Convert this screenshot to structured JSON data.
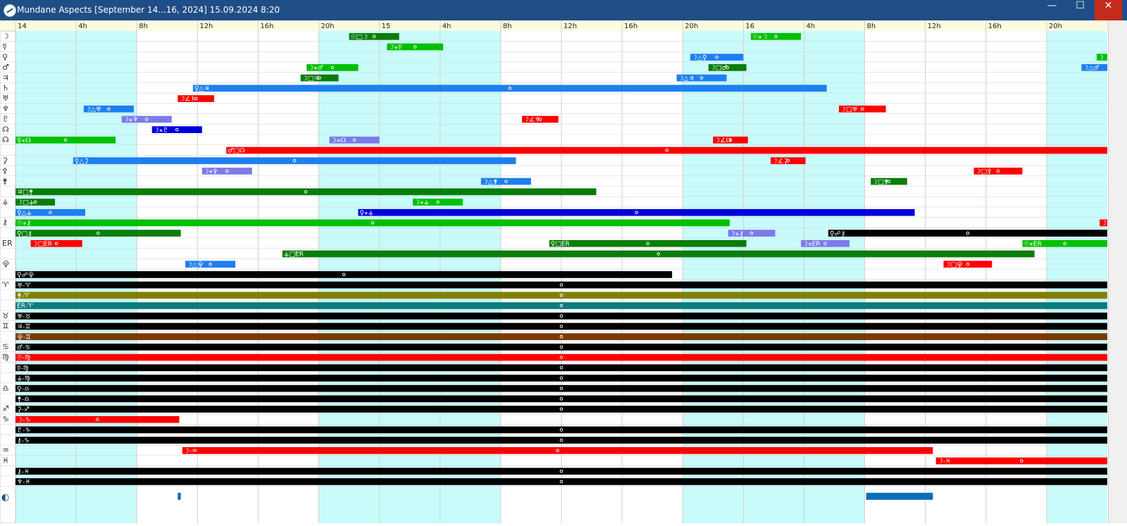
{
  "window": {
    "title": "Mundane Aspects [September 14...16, 2024]  15.09.2024  8:20",
    "minimize_glyph": "—",
    "maximize_glyph": "☐",
    "close_glyph": "✕"
  },
  "colors": {
    "night": "#c9fbfb",
    "day": "#ffffff",
    "header": "#fbfbe0",
    "grid": "#cfcfcf"
  },
  "timeline": {
    "labels": [
      "14",
      "4h",
      "8h",
      "12h",
      "16h",
      "20h",
      "15",
      "4h",
      "8h",
      "12h",
      "16h",
      "20h",
      "16",
      "4h",
      "8h",
      "12h",
      "16h",
      "20h"
    ],
    "night_periods": [
      [
        0,
        8
      ],
      [
        20,
        32
      ],
      [
        44,
        56
      ],
      [
        68,
        72
      ]
    ]
  },
  "rows": [
    {
      "glyph": "☽",
      "bars": [
        {
          "s": 22,
          "e": 25.3,
          "c": "#0a7d0a",
          "t": "☉□☽"
        },
        {
          "s": 48.5,
          "e": 51.8,
          "c": "#00c000",
          "t": "☉⚹☽"
        }
      ]
    },
    {
      "glyph": "☿",
      "bars": [
        {
          "s": 24.5,
          "e": 28.2,
          "c": "#00c000",
          "t": "☽⚹☿"
        }
      ]
    },
    {
      "glyph": "♀",
      "bars": [
        {
          "s": 44.5,
          "e": 48,
          "c": "#1e7ff0",
          "t": "☽△♀"
        },
        {
          "s": 71.3,
          "e": 72,
          "c": "#00c000",
          "t": "☽"
        }
      ]
    },
    {
      "glyph": "♂",
      "bars": [
        {
          "s": 19.2,
          "e": 22.6,
          "c": "#00c000",
          "t": "☽⚹♂"
        },
        {
          "s": 45.7,
          "e": 48.2,
          "c": "#0a7d0a",
          "t": "☽□♂"
        },
        {
          "s": 70.3,
          "e": 72,
          "c": "#1e7ff0",
          "t": "☽△♂"
        }
      ]
    },
    {
      "glyph": "♃",
      "bars": [
        {
          "s": 18.8,
          "e": 21.3,
          "c": "#0a7d0a",
          "t": "☽□♃"
        },
        {
          "s": 43.6,
          "e": 46.9,
          "c": "#1e7ff0",
          "t": "☽△♃"
        }
      ]
    },
    {
      "glyph": "♄",
      "bars": [
        {
          "s": 11.7,
          "e": 53.5,
          "c": "#1e7ff0",
          "t": "♀△♃"
        }
      ]
    },
    {
      "glyph": "♅",
      "bars": [
        {
          "s": 10.7,
          "e": 13.1,
          "c": "#ff0000",
          "t": "☽∠♄"
        }
      ]
    },
    {
      "glyph": "♆",
      "bars": [
        {
          "s": 4.5,
          "e": 7.8,
          "c": "#1e7ff0",
          "t": "☽△♅"
        },
        {
          "s": 54.3,
          "e": 57.4,
          "c": "#ff0000",
          "t": "☽□♅"
        }
      ]
    },
    {
      "glyph": "♇",
      "bars": [
        {
          "s": 7,
          "e": 10.3,
          "c": "#7b7bea",
          "t": "☽⚹♆"
        },
        {
          "s": 33.4,
          "e": 35.8,
          "c": "#ff0000",
          "t": "☽∠♆"
        }
      ]
    },
    {
      "glyph": "☊",
      "bars": [
        {
          "s": 9,
          "e": 12.3,
          "c": "#0000dd",
          "t": "☽⚹♇"
        }
      ]
    },
    {
      "glyph": "☊",
      "bars": [
        {
          "s": 0,
          "e": 6.6,
          "c": "#00c000",
          "t": "♀⚹☊"
        },
        {
          "s": 20.7,
          "e": 24,
          "c": "#7b7bea",
          "t": "☽⚹☊"
        },
        {
          "s": 46,
          "e": 48.3,
          "c": "#ff0000",
          "t": "☽∠☊"
        }
      ]
    },
    {
      "glyph": "",
      "bars": [
        {
          "s": 13.9,
          "e": 72,
          "c": "#ff0000",
          "t": "♂□☊"
        }
      ]
    },
    {
      "glyph": "⚳",
      "bars": [
        {
          "s": 3.8,
          "e": 33,
          "c": "#1e7ff0",
          "t": "♀△⚳"
        },
        {
          "s": 49.8,
          "e": 52.1,
          "c": "#ff0000",
          "t": "☽∠⚳"
        }
      ]
    },
    {
      "glyph": "⚴",
      "bars": [
        {
          "s": 12.3,
          "e": 15.6,
          "c": "#7b7bea",
          "t": "☽⚹⚴"
        },
        {
          "s": 63.2,
          "e": 66.4,
          "c": "#ff0000",
          "t": "☽□⚴"
        }
      ]
    },
    {
      "glyph": "⚵",
      "bars": [
        {
          "s": 30.7,
          "e": 34,
          "c": "#1e7ff0",
          "t": "☽△⚵"
        },
        {
          "s": 56.4,
          "e": 58.8,
          "c": "#0a7d0a",
          "t": "☽□⚵"
        }
      ]
    },
    {
      "glyph": "",
      "bars": [
        {
          "s": 0,
          "e": 38.3,
          "c": "#0a7d0a",
          "t": "♃□⚵"
        }
      ]
    },
    {
      "glyph": "⚶",
      "bars": [
        {
          "s": 0,
          "e": 2.6,
          "c": "#0a7d0a",
          "t": "☽□⚶"
        },
        {
          "s": 26.2,
          "e": 29.5,
          "c": "#00c000",
          "t": "☽⚹⚶"
        }
      ]
    },
    {
      "glyph": "",
      "bars": [
        {
          "s": 0,
          "e": 4.6,
          "c": "#1e7ff0",
          "t": "♀△⚶"
        },
        {
          "s": 22.6,
          "e": 59.3,
          "c": "#0000dd",
          "t": "♀⚹⚶"
        }
      ]
    },
    {
      "glyph": "⚷",
      "bars": [
        {
          "s": 0,
          "e": 47.1,
          "c": "#00c000",
          "t": "☉⚹⚷"
        },
        {
          "s": 71.5,
          "e": 72,
          "c": "#ff0000",
          "t": "☽"
        }
      ]
    },
    {
      "glyph": "",
      "bars": [
        {
          "s": 0,
          "e": 10.9,
          "c": "#0a7d0a",
          "t": "♀□⚷"
        },
        {
          "s": 47,
          "e": 50.1,
          "c": "#7b7bea",
          "t": "☽⚹⚷"
        },
        {
          "s": 53.6,
          "e": 72,
          "c": "#000000",
          "t": "♀☍⚷"
        }
      ]
    },
    {
      "glyph": "ER",
      "bars": [
        {
          "s": 1,
          "e": 4.4,
          "c": "#ff0000",
          "t": "☽□ER"
        },
        {
          "s": 35.2,
          "e": 48.2,
          "c": "#0a7d0a",
          "t": "♀□ER"
        },
        {
          "s": 51.8,
          "e": 55,
          "c": "#7b7bea",
          "t": "☽⚹ER"
        },
        {
          "s": 66.4,
          "e": 72,
          "c": "#00c000",
          "t": "☉⚹ER"
        }
      ]
    },
    {
      "glyph": "",
      "bars": [
        {
          "s": 17.6,
          "e": 67.2,
          "c": "#0a7d0a",
          "t": "⚶□ER"
        }
      ]
    },
    {
      "glyph": "⯓",
      "bars": [
        {
          "s": 11.2,
          "e": 14.5,
          "c": "#1e7ff0",
          "t": "☽△⯓"
        },
        {
          "s": 61.2,
          "e": 64.4,
          "c": "#ff0000",
          "t": "☽□⯓"
        }
      ]
    },
    {
      "glyph": "",
      "bars": [
        {
          "s": 0,
          "e": 43.3,
          "c": "#000000",
          "t": "♀☍⯓"
        }
      ]
    },
    {
      "glyph": "♈",
      "bars": [
        {
          "s": 0,
          "e": 72,
          "c": "#000000",
          "t": "♅-♈"
        }
      ]
    },
    {
      "glyph": "",
      "bars": [
        {
          "s": 0,
          "e": 72,
          "c": "#808000",
          "t": "⚵-♈"
        }
      ]
    },
    {
      "glyph": "",
      "bars": [
        {
          "s": 0,
          "e": 72,
          "c": "#0a7d7d",
          "t": "ER-♈"
        }
      ]
    },
    {
      "glyph": "♉",
      "bars": [
        {
          "s": 0,
          "e": 72,
          "c": "#000000",
          "t": "♅-♉"
        }
      ]
    },
    {
      "glyph": "♊",
      "bars": [
        {
          "s": 0,
          "e": 72,
          "c": "#000000",
          "t": "♃-♊"
        }
      ]
    },
    {
      "glyph": "",
      "bars": [
        {
          "s": 0,
          "e": 72,
          "c": "#7a3a00",
          "t": "⯓-♊"
        }
      ]
    },
    {
      "glyph": "♋",
      "bars": [
        {
          "s": 0,
          "e": 72,
          "c": "#000000",
          "t": "♂-♋"
        }
      ]
    },
    {
      "glyph": "♍",
      "bars": [
        {
          "s": 0,
          "e": 72,
          "c": "#ff0000",
          "t": "☉-♍"
        }
      ]
    },
    {
      "glyph": "",
      "bars": [
        {
          "s": 0,
          "e": 72,
          "c": "#000000",
          "t": "☿-♍"
        }
      ]
    },
    {
      "glyph": "",
      "bars": [
        {
          "s": 0,
          "e": 72,
          "c": "#000000",
          "t": "⚶-♍"
        }
      ]
    },
    {
      "glyph": "♎",
      "bars": [
        {
          "s": 0,
          "e": 72,
          "c": "#000000",
          "t": "♀-♎"
        }
      ]
    },
    {
      "glyph": "",
      "bars": [
        {
          "s": 0,
          "e": 72,
          "c": "#000000",
          "t": "⚵-♎"
        }
      ]
    },
    {
      "glyph": "♐",
      "bars": [
        {
          "s": 0,
          "e": 72,
          "c": "#000000",
          "t": "⚳-♐"
        }
      ]
    },
    {
      "glyph": "♑",
      "bars": [
        {
          "s": 0,
          "e": 10.8,
          "c": "#ff0000",
          "t": "☽-♑"
        }
      ]
    },
    {
      "glyph": "",
      "bars": [
        {
          "s": 0,
          "e": 72,
          "c": "#000000",
          "t": "♇-♑"
        }
      ]
    },
    {
      "glyph": "",
      "bars": [
        {
          "s": 0,
          "e": 72,
          "c": "#000000",
          "t": "⚷-♑"
        }
      ]
    },
    {
      "glyph": "♒",
      "bars": [
        {
          "s": 11,
          "e": 60.5,
          "c": "#ff0000",
          "t": "☽-♒"
        }
      ]
    },
    {
      "glyph": "♓",
      "bars": [
        {
          "s": 60.7,
          "e": 72,
          "c": "#ff0000",
          "t": "☽-♓"
        }
      ]
    },
    {
      "glyph": "",
      "bars": [
        {
          "s": 0,
          "e": 72,
          "c": "#000000",
          "t": "⚷-♓"
        }
      ]
    },
    {
      "glyph": "",
      "bars": [
        {
          "s": 0,
          "e": 72,
          "c": "#000000",
          "t": "♆-♓"
        }
      ]
    }
  ],
  "moon_row": {
    "glyph": "◐",
    "bars": [
      {
        "s": 10.7,
        "e": 10.9,
        "c": "#0a6fb8"
      },
      {
        "s": 56.1,
        "e": 60.5,
        "c": "#0a6fb8"
      }
    ]
  }
}
